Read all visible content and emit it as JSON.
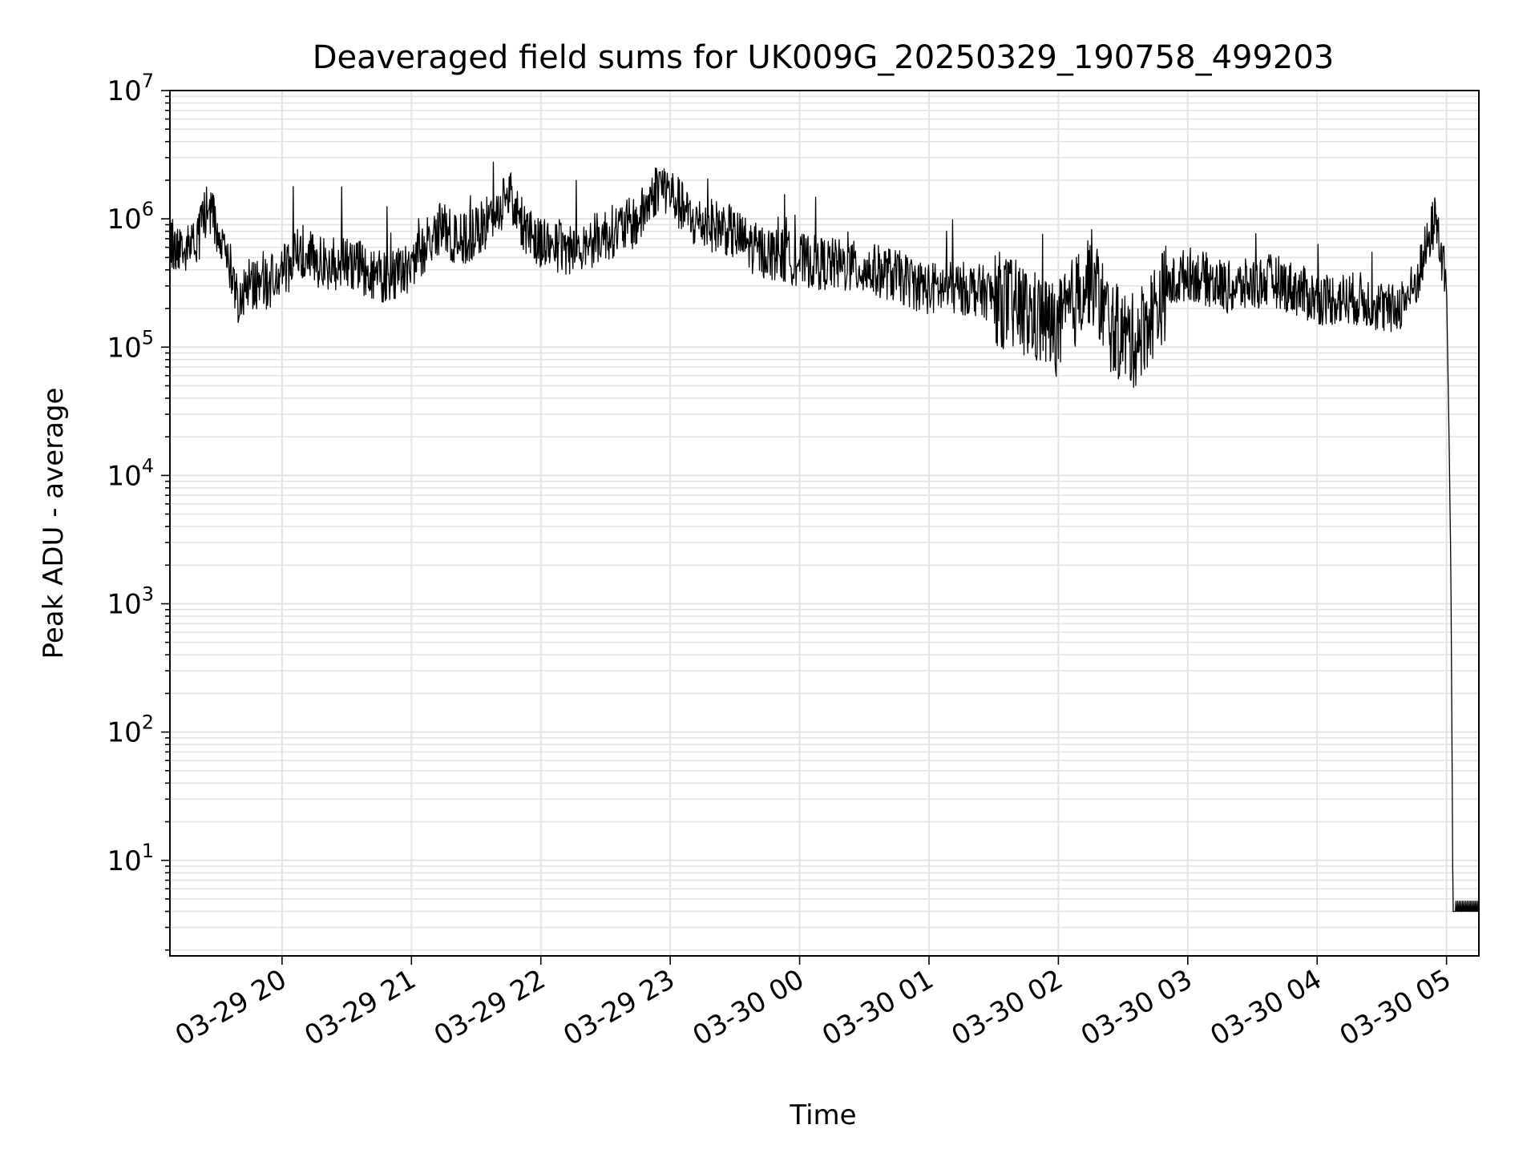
{
  "chart_data": {
    "type": "line",
    "title": "Deaveraged field sums for UK009G_20250329_190758_499203",
    "xlabel": "Time",
    "ylabel": "Peak ADU - average",
    "yscale": "log",
    "ylim": [
      1.8,
      10000000
    ],
    "xlim": [
      "2025-03-29 19:08",
      "2025-03-30 05:15"
    ],
    "x_tick_labels": [
      "03-29 20",
      "03-29 21",
      "03-29 22",
      "03-29 23",
      "03-30 00",
      "03-30 01",
      "03-30 02",
      "03-30 03",
      "03-30 04",
      "03-30 05"
    ],
    "y_tick_labels": [
      {
        "base": "10",
        "exp": "1"
      },
      {
        "base": "10",
        "exp": "2"
      },
      {
        "base": "10",
        "exp": "3"
      },
      {
        "base": "10",
        "exp": "4"
      },
      {
        "base": "10",
        "exp": "5"
      },
      {
        "base": "10",
        "exp": "6"
      },
      {
        "base": "10",
        "exp": "7"
      }
    ],
    "grid": true,
    "line_color": "#000000",
    "grid_color": "#e3e3e3",
    "series": [
      {
        "x": [
          "2025-03-29 19:08",
          "2025-03-29 19:15",
          "2025-03-29 19:20",
          "2025-03-29 19:25",
          "2025-03-29 19:30",
          "2025-03-29 19:35",
          "2025-03-29 19:40",
          "2025-03-29 19:45",
          "2025-03-29 19:50",
          "2025-03-29 20:00",
          "2025-03-29 20:10",
          "2025-03-29 20:20",
          "2025-03-29 20:30",
          "2025-03-29 20:40",
          "2025-03-29 20:50",
          "2025-03-29 21:00",
          "2025-03-29 21:10",
          "2025-03-29 21:15",
          "2025-03-29 21:20",
          "2025-03-29 21:30",
          "2025-03-29 21:40",
          "2025-03-29 21:45",
          "2025-03-29 21:50",
          "2025-03-29 22:00",
          "2025-03-29 22:15",
          "2025-03-29 22:30",
          "2025-03-29 22:45",
          "2025-03-29 22:55",
          "2025-03-29 23:00",
          "2025-03-29 23:10",
          "2025-03-29 23:25",
          "2025-03-29 23:40",
          "2025-03-30 00:00",
          "2025-03-30 00:20",
          "2025-03-30 00:40",
          "2025-03-30 01:00",
          "2025-03-30 01:20",
          "2025-03-30 01:35",
          "2025-03-30 01:45",
          "2025-03-30 02:00",
          "2025-03-30 02:15",
          "2025-03-30 02:25",
          "2025-03-30 02:35",
          "2025-03-30 02:50",
          "2025-03-30 03:00",
          "2025-03-30 03:20",
          "2025-03-30 03:40",
          "2025-03-30 04:00",
          "2025-03-30 04:20",
          "2025-03-30 04:35",
          "2025-03-30 04:45",
          "2025-03-30 04:55",
          "2025-03-30 05:00",
          "2025-03-30 05:01",
          "2025-03-30 05:02",
          "2025-03-30 05:03",
          "2025-03-30 05:05",
          "2025-03-30 05:10",
          "2025-03-30 05:15"
        ],
        "y": [
          700000,
          600000,
          650000,
          1300000,
          900000,
          500000,
          250000,
          350000,
          300000,
          400000,
          600000,
          450000,
          500000,
          400000,
          350000,
          450000,
          800000,
          900000,
          700000,
          800000,
          1200000,
          1800000,
          1000000,
          700000,
          600000,
          800000,
          1000000,
          2000000,
          1700000,
          1000000,
          900000,
          600000,
          500000,
          450000,
          400000,
          300000,
          300000,
          250000,
          200000,
          150000,
          400000,
          150000,
          120000,
          300000,
          400000,
          300000,
          350000,
          250000,
          250000,
          200000,
          300000,
          1100000,
          300000,
          30000,
          2000,
          4,
          4,
          4,
          4
        ]
      }
    ]
  }
}
